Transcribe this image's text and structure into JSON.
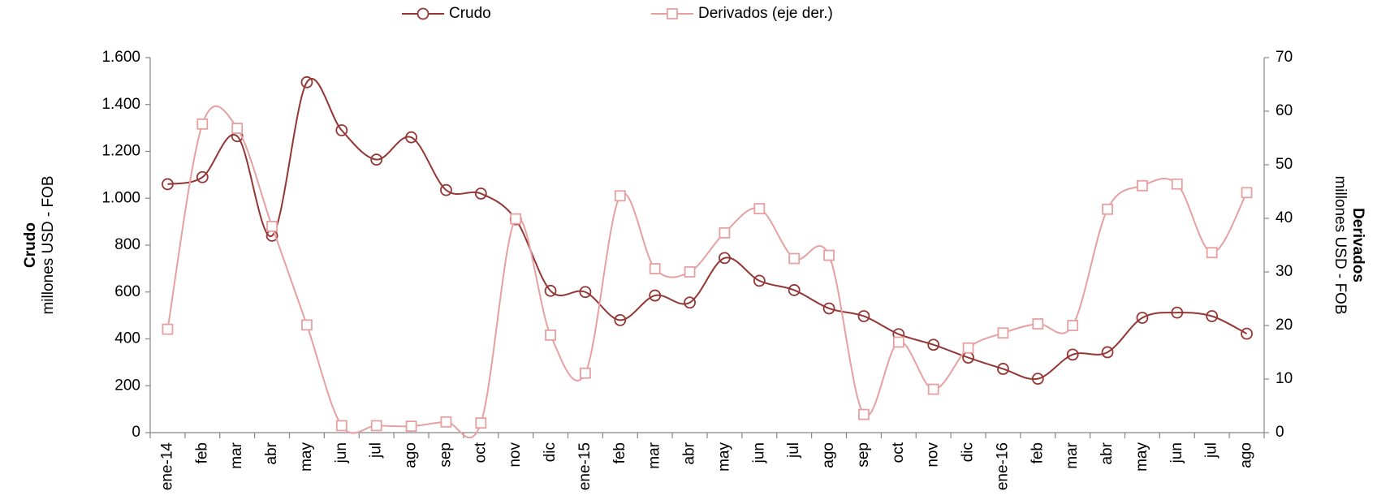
{
  "chart_data": {
    "type": "line",
    "y_label_bold": "Crudo",
    "y_label": "millones USD - FOB",
    "y2_label_bold": "Derivados",
    "y2_label": "millones USD - FOB",
    "categories": [
      "ene-14",
      "feb",
      "mar",
      "abr",
      "may",
      "jun",
      "jul",
      "ago",
      "sep",
      "oct",
      "nov",
      "dic",
      "ene-15",
      "feb",
      "mar",
      "abr",
      "may",
      "jun",
      "jul",
      "ago",
      "sep",
      "oct",
      "nov",
      "dic",
      "ene-16",
      "feb",
      "mar",
      "abr",
      "may",
      "jun",
      "jul",
      "ago"
    ],
    "series": [
      {
        "name": "Crudo",
        "color": "#943634",
        "marker": "circle",
        "values": [
          1060,
          1090,
          1265,
          840,
          1495,
          1290,
          1165,
          1260,
          1035,
          1020,
          910,
          605,
          600,
          480,
          585,
          555,
          745,
          648,
          608,
          530,
          497,
          420,
          375,
          320,
          272,
          230,
          333,
          343,
          490,
          512,
          497,
          422
        ]
      },
      {
        "name": "Derivados (eje der.)",
        "color": "#e6a0a0",
        "marker": "square",
        "axis": "y2",
        "values": [
          19.3,
          57.6,
          56.8,
          38.5,
          20.1,
          1.3,
          1.3,
          1.2,
          2.0,
          1.8,
          39.9,
          18.2,
          11.1,
          44.2,
          30.6,
          30.0,
          37.3,
          41.8,
          32.5,
          33.1,
          3.4,
          16.9,
          8.1,
          15.8,
          18.6,
          20.3,
          20.0,
          41.7,
          46.1,
          46.4,
          33.6,
          44.8
        ]
      }
    ],
    "ylim": [
      0,
      1600
    ],
    "yticks": [
      0,
      200,
      400,
      600,
      800,
      {
        "value": 1000,
        "label": "1.000"
      },
      {
        "value": 1200,
        "label": "1.200"
      },
      {
        "value": 1400,
        "label": "1.400"
      },
      {
        "value": 1600,
        "label": "1.600"
      }
    ],
    "y2lim": [
      0,
      70
    ],
    "y2ticks": [
      0,
      10,
      20,
      30,
      40,
      50,
      60,
      70
    ],
    "smooth": true,
    "legend": "top"
  }
}
